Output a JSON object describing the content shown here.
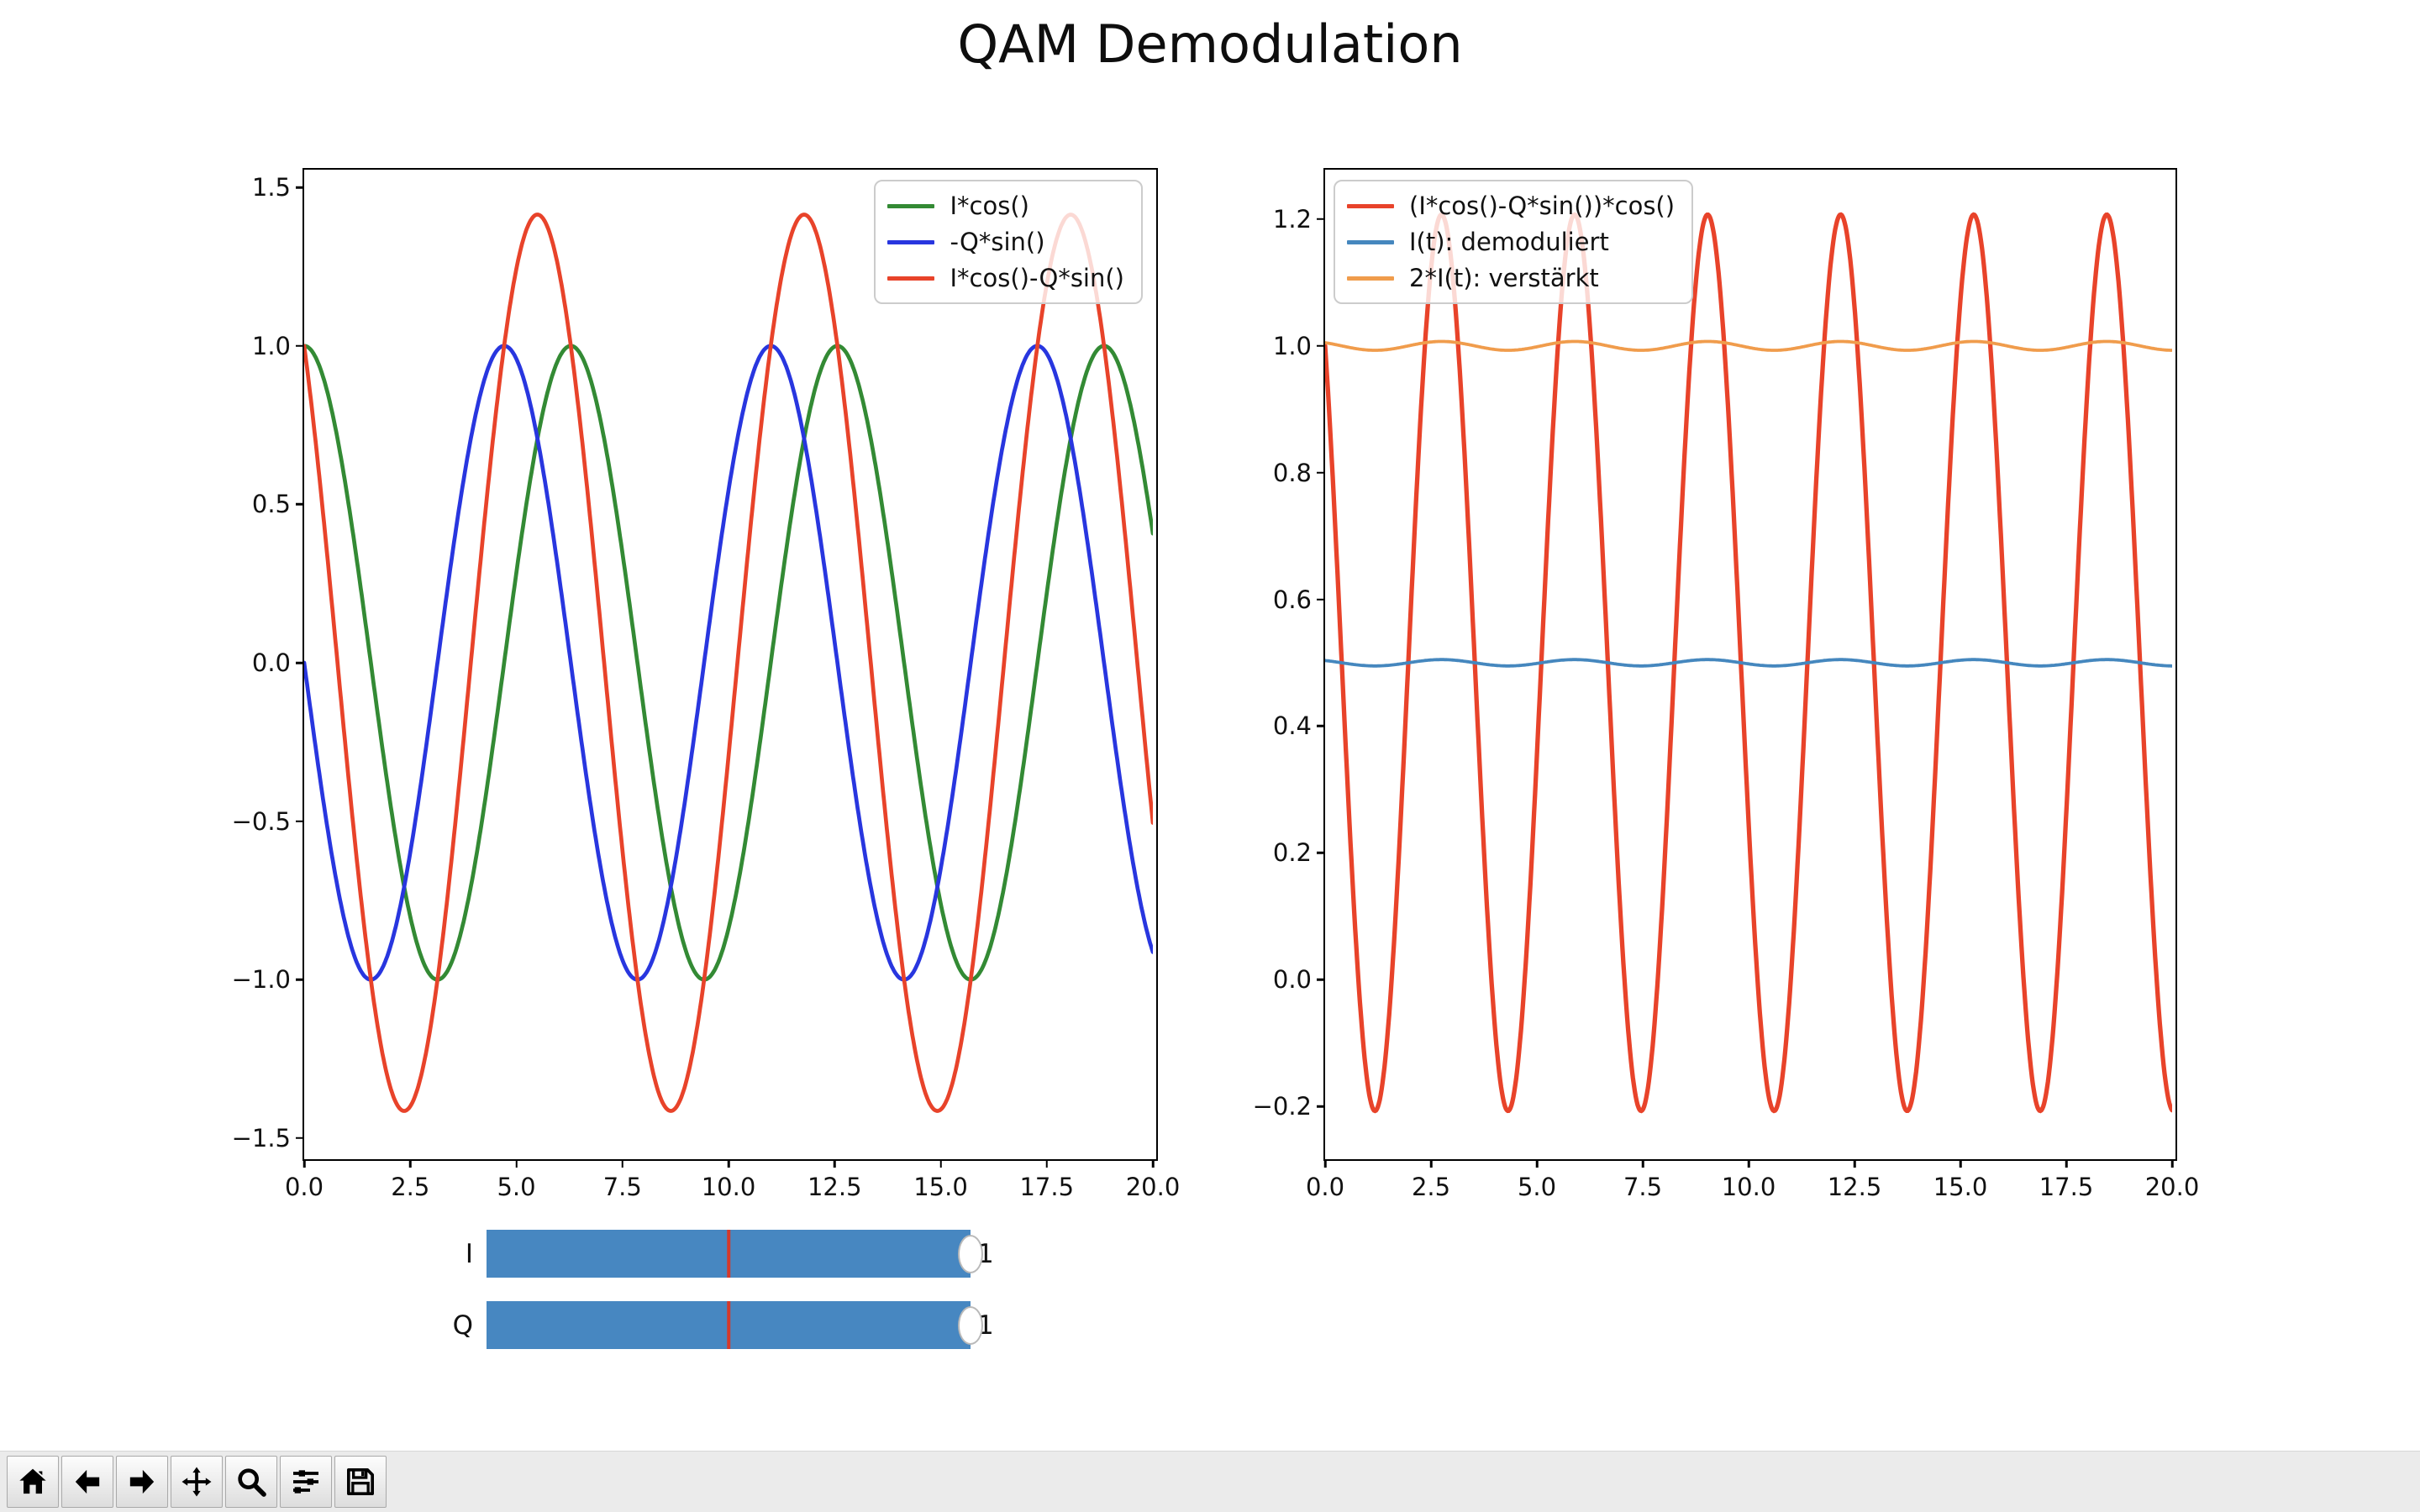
{
  "title": "QAM Demodulation",
  "chart_data": [
    {
      "id": "left",
      "type": "line",
      "title": "",
      "xlabel": "",
      "ylabel": "",
      "xlim": [
        0,
        20
      ],
      "ylim": [
        -1.556,
        1.556
      ],
      "grid": false,
      "legend_loc": "upper-right",
      "xticks": {
        "values": [
          0,
          2.5,
          5,
          7.5,
          10,
          12.5,
          15,
          17.5,
          20
        ],
        "labels": [
          "0.0",
          "2.5",
          "5.0",
          "7.5",
          "10.0",
          "12.5",
          "15.0",
          "17.5",
          "20.0"
        ]
      },
      "yticks": {
        "values": [
          1.5,
          1.0,
          0.5,
          0.0,
          -0.5,
          -1.0,
          -1.5
        ],
        "labels": [
          "1.5",
          "1.0",
          "0.5",
          "0.0",
          "−0.5",
          "−1.0",
          "−1.5"
        ]
      },
      "model": "y(t) = offset + amplitude * cos(omega*t + phase), t in [0,20], I=1, Q=1",
      "series": [
        {
          "label": "I*cos()",
          "color": "#338a34",
          "offset": 0,
          "amplitude": 1.0,
          "omega": 1,
          "phase": 0,
          "linewidth": 4.7
        },
        {
          "label": "-Q*sin()",
          "color": "#2836df",
          "offset": 0,
          "amplitude": 1.0,
          "omega": 1,
          "phase": 1.5708,
          "linewidth": 4.7
        },
        {
          "label": "I*cos()-Q*sin()",
          "color": "#e8432a",
          "offset": 0,
          "amplitude": 1.41421,
          "omega": 1,
          "phase": 0.7854,
          "linewidth": 4.7
        }
      ]
    },
    {
      "id": "right",
      "type": "line",
      "title": "",
      "xlabel": "",
      "ylabel": "",
      "xlim": [
        0,
        20
      ],
      "ylim": [
        -0.278,
        1.278
      ],
      "grid": false,
      "legend_loc": "upper-left",
      "xticks": {
        "values": [
          0,
          2.5,
          5,
          7.5,
          10,
          12.5,
          15,
          17.5,
          20
        ],
        "labels": [
          "0.0",
          "2.5",
          "5.0",
          "7.5",
          "10.0",
          "12.5",
          "15.0",
          "17.5",
          "20.0"
        ]
      },
      "yticks": {
        "values": [
          1.2,
          1.0,
          0.8,
          0.6,
          0.4,
          0.2,
          0.0,
          -0.2
        ],
        "labels": [
          "1.2",
          "1.0",
          "0.8",
          "0.6",
          "0.4",
          "0.2",
          "0.0",
          "−0.2"
        ]
      },
      "model": "y(t) = offset + amplitude * cos(omega*t + phase), t in [0,20]",
      "series": [
        {
          "label": "(I*cos()-Q*sin())*cos()",
          "color": "#e8432a",
          "offset": 0.5,
          "amplitude": 0.70711,
          "omega": 2,
          "phase": 0.7854,
          "linewidth": 5.3
        },
        {
          "label": "I(t): demoduliert",
          "color": "#4587be",
          "offset": 0.5,
          "amplitude": 0.005,
          "omega": 2,
          "phase": 0.7854,
          "linewidth": 3.8
        },
        {
          "label": "2*I(t): verstärkt",
          "color": "#f09c4c",
          "offset": 1.0,
          "amplitude": 0.007,
          "omega": 2,
          "phase": 0.7854,
          "linewidth": 3.8
        }
      ]
    }
  ],
  "sliders": [
    {
      "label": "I",
      "value": "1"
    },
    {
      "label": "Q",
      "value": "1"
    }
  ],
  "slider_style": {
    "bar_color": "#4787c1",
    "init_line_color": "#d4392b"
  },
  "toolbar": {
    "buttons": [
      {
        "icon": "home"
      },
      {
        "icon": "back"
      },
      {
        "icon": "forward"
      },
      {
        "icon": "pan"
      },
      {
        "icon": "zoom-to-rect"
      },
      {
        "icon": "configure-subplots"
      },
      {
        "icon": "save"
      }
    ]
  }
}
